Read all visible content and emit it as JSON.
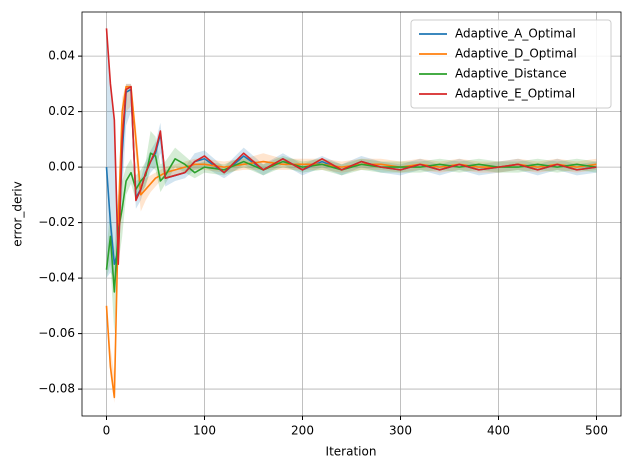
{
  "chart_data": {
    "type": "line",
    "xlabel": "Iteration",
    "ylabel": "error_deriv",
    "x": [
      0,
      4,
      8,
      12,
      16,
      20,
      25,
      30,
      35,
      40,
      45,
      50,
      55,
      60,
      70,
      80,
      90,
      100,
      120,
      140,
      160,
      180,
      200,
      220,
      240,
      260,
      280,
      300,
      320,
      340,
      360,
      380,
      400,
      420,
      440,
      460,
      480,
      500
    ],
    "series": [
      {
        "name": "Adaptive_A_Optimal",
        "color": "#1f77b4",
        "values": [
          0,
          -0.02,
          -0.035,
          -0.03,
          0.005,
          0.027,
          0.028,
          -0.011,
          -0.008,
          -0.002,
          0.002,
          0.005,
          0.012,
          -0.004,
          -0.003,
          -0.002,
          0.002,
          0.003,
          -0.002,
          0.004,
          -0.001,
          0.003,
          -0.001,
          0.002,
          -0.001,
          0.002,
          0,
          -0.001,
          0.001,
          -0.001,
          0.001,
          -0.001,
          0,
          0.001,
          -0.001,
          0.001,
          -0.001,
          0
        ],
        "lower": [
          -0.04,
          -0.038,
          -0.04,
          -0.035,
          -0.01,
          0.015,
          0.02,
          -0.015,
          -0.012,
          -0.006,
          -0.002,
          0,
          0.005,
          -0.007,
          -0.005,
          -0.004,
          -0.001,
          0,
          -0.004,
          0.001,
          -0.003,
          0.001,
          -0.003,
          0,
          -0.003,
          0,
          -0.002,
          -0.003,
          -0.001,
          -0.003,
          -0.001,
          -0.003,
          -0.002,
          -0.001,
          -0.003,
          -0.001,
          -0.003,
          -0.002
        ],
        "upper": [
          0.05,
          0.03,
          0.018,
          -0.02,
          0.015,
          0.03,
          0.03,
          -0.005,
          -0.004,
          0.002,
          0.006,
          0.009,
          0.016,
          -0.001,
          -0.001,
          0,
          0.005,
          0.006,
          0,
          0.007,
          0.001,
          0.005,
          0.001,
          0.004,
          0.001,
          0.004,
          0.002,
          0.001,
          0.003,
          0.001,
          0.003,
          0.001,
          0.002,
          0.003,
          0.001,
          0.003,
          0.001,
          0.002
        ]
      },
      {
        "name": "Adaptive_D_Optimal",
        "color": "#ff7f0e",
        "values": [
          -0.05,
          -0.072,
          -0.083,
          -0.02,
          0.02,
          0.029,
          0.029,
          0.01,
          -0.01,
          -0.008,
          -0.006,
          -0.004,
          -0.003,
          -0.002,
          -0.001,
          0,
          0.001,
          0.001,
          0,
          0.001,
          0.002,
          0.001,
          0.001,
          0.001,
          0,
          0.001,
          0.001,
          0,
          0.001,
          0,
          0.001,
          0,
          0,
          0.001,
          0,
          0.001,
          0,
          0.001
        ],
        "lower": [
          -0.05,
          -0.075,
          -0.085,
          -0.03,
          0.01,
          0.02,
          0.022,
          0.003,
          -0.016,
          -0.012,
          -0.009,
          -0.007,
          -0.005,
          -0.004,
          -0.003,
          -0.002,
          -0.001,
          -0.001,
          -0.002,
          -0.001,
          -0.001,
          -0.001,
          -0.001,
          -0.001,
          -0.002,
          -0.001,
          -0.001,
          -0.002,
          -0.001,
          -0.002,
          -0.001,
          -0.002,
          -0.002,
          -0.001,
          -0.002,
          -0.001,
          -0.002,
          -0.001
        ],
        "upper": [
          -0.05,
          -0.065,
          -0.075,
          -0.01,
          0.025,
          0.03,
          0.03,
          0.015,
          -0.005,
          -0.004,
          -0.003,
          -0.002,
          -0.001,
          0,
          0.001,
          0.002,
          0.003,
          0.003,
          0.002,
          0.003,
          0.005,
          0.003,
          0.003,
          0.003,
          0.002,
          0.003,
          0.003,
          0.002,
          0.003,
          0.002,
          0.003,
          0.002,
          0.002,
          0.003,
          0.002,
          0.003,
          0.002,
          0.003
        ]
      },
      {
        "name": "Adaptive_Distance",
        "color": "#2ca02c",
        "values": [
          -0.037,
          -0.025,
          -0.045,
          -0.023,
          -0.015,
          -0.005,
          -0.002,
          -0.008,
          -0.005,
          -0.003,
          0.005,
          0.004,
          -0.005,
          -0.003,
          0.003,
          0.001,
          -0.002,
          0,
          -0.001,
          0.002,
          -0.001,
          0.002,
          0,
          0.001,
          -0.001,
          0.001,
          0,
          0,
          0,
          0.001,
          0,
          0.001,
          0,
          0,
          0.001,
          0,
          0.001,
          0
        ],
        "lower": [
          -0.04,
          -0.035,
          -0.06,
          -0.035,
          -0.025,
          -0.01,
          -0.006,
          -0.012,
          -0.009,
          -0.007,
          0,
          -0.001,
          -0.009,
          -0.006,
          0,
          -0.002,
          -0.004,
          -0.002,
          -0.003,
          0,
          -0.003,
          0,
          -0.002,
          -0.001,
          -0.003,
          -0.001,
          -0.002,
          -0.002,
          -0.002,
          -0.001,
          -0.002,
          -0.001,
          -0.002,
          -0.002,
          -0.001,
          -0.002,
          -0.001,
          -0.002
        ],
        "upper": [
          -0.03,
          -0.015,
          -0.03,
          -0.01,
          -0.005,
          0,
          0.003,
          -0.003,
          -0.001,
          0.002,
          0.013,
          0.011,
          0.001,
          0.002,
          0.007,
          0.004,
          0.001,
          0.002,
          0.001,
          0.004,
          0.001,
          0.004,
          0.002,
          0.003,
          0.001,
          0.003,
          0.002,
          0.002,
          0.002,
          0.003,
          0.002,
          0.003,
          0.002,
          0.002,
          0.003,
          0.002,
          0.003,
          0.002
        ]
      },
      {
        "name": "Adaptive_E_Optimal",
        "color": "#d62728",
        "values": [
          0.05,
          0.03,
          0.017,
          -0.035,
          0.01,
          0.028,
          0.029,
          -0.012,
          -0.008,
          -0.002,
          0.002,
          0.006,
          0.013,
          -0.004,
          -0.003,
          -0.002,
          0.002,
          0.004,
          -0.002,
          0.005,
          -0.001,
          0.003,
          -0.001,
          0.003,
          -0.001,
          0.002,
          0,
          -0.001,
          0.001,
          -0.001,
          0.001,
          -0.001,
          0,
          0.001,
          -0.001,
          0.001,
          -0.001,
          0
        ]
      }
    ],
    "xlim": [
      -25,
      525
    ],
    "xticks": [
      0,
      100,
      200,
      300,
      400,
      500
    ],
    "ylim": [
      -0.0897,
      0.0559
    ],
    "yticks": [
      {
        "value": -0.08,
        "label": "−0.08"
      },
      {
        "value": -0.06,
        "label": "−0.06"
      },
      {
        "value": -0.04,
        "label": "−0.04"
      },
      {
        "value": -0.02,
        "label": "−0.02"
      },
      {
        "value": 0,
        "label": "0.00"
      },
      {
        "value": 0.02,
        "label": "0.02"
      },
      {
        "value": 0.04,
        "label": "0.04"
      }
    ],
    "grid": true,
    "legend": "upper right"
  }
}
